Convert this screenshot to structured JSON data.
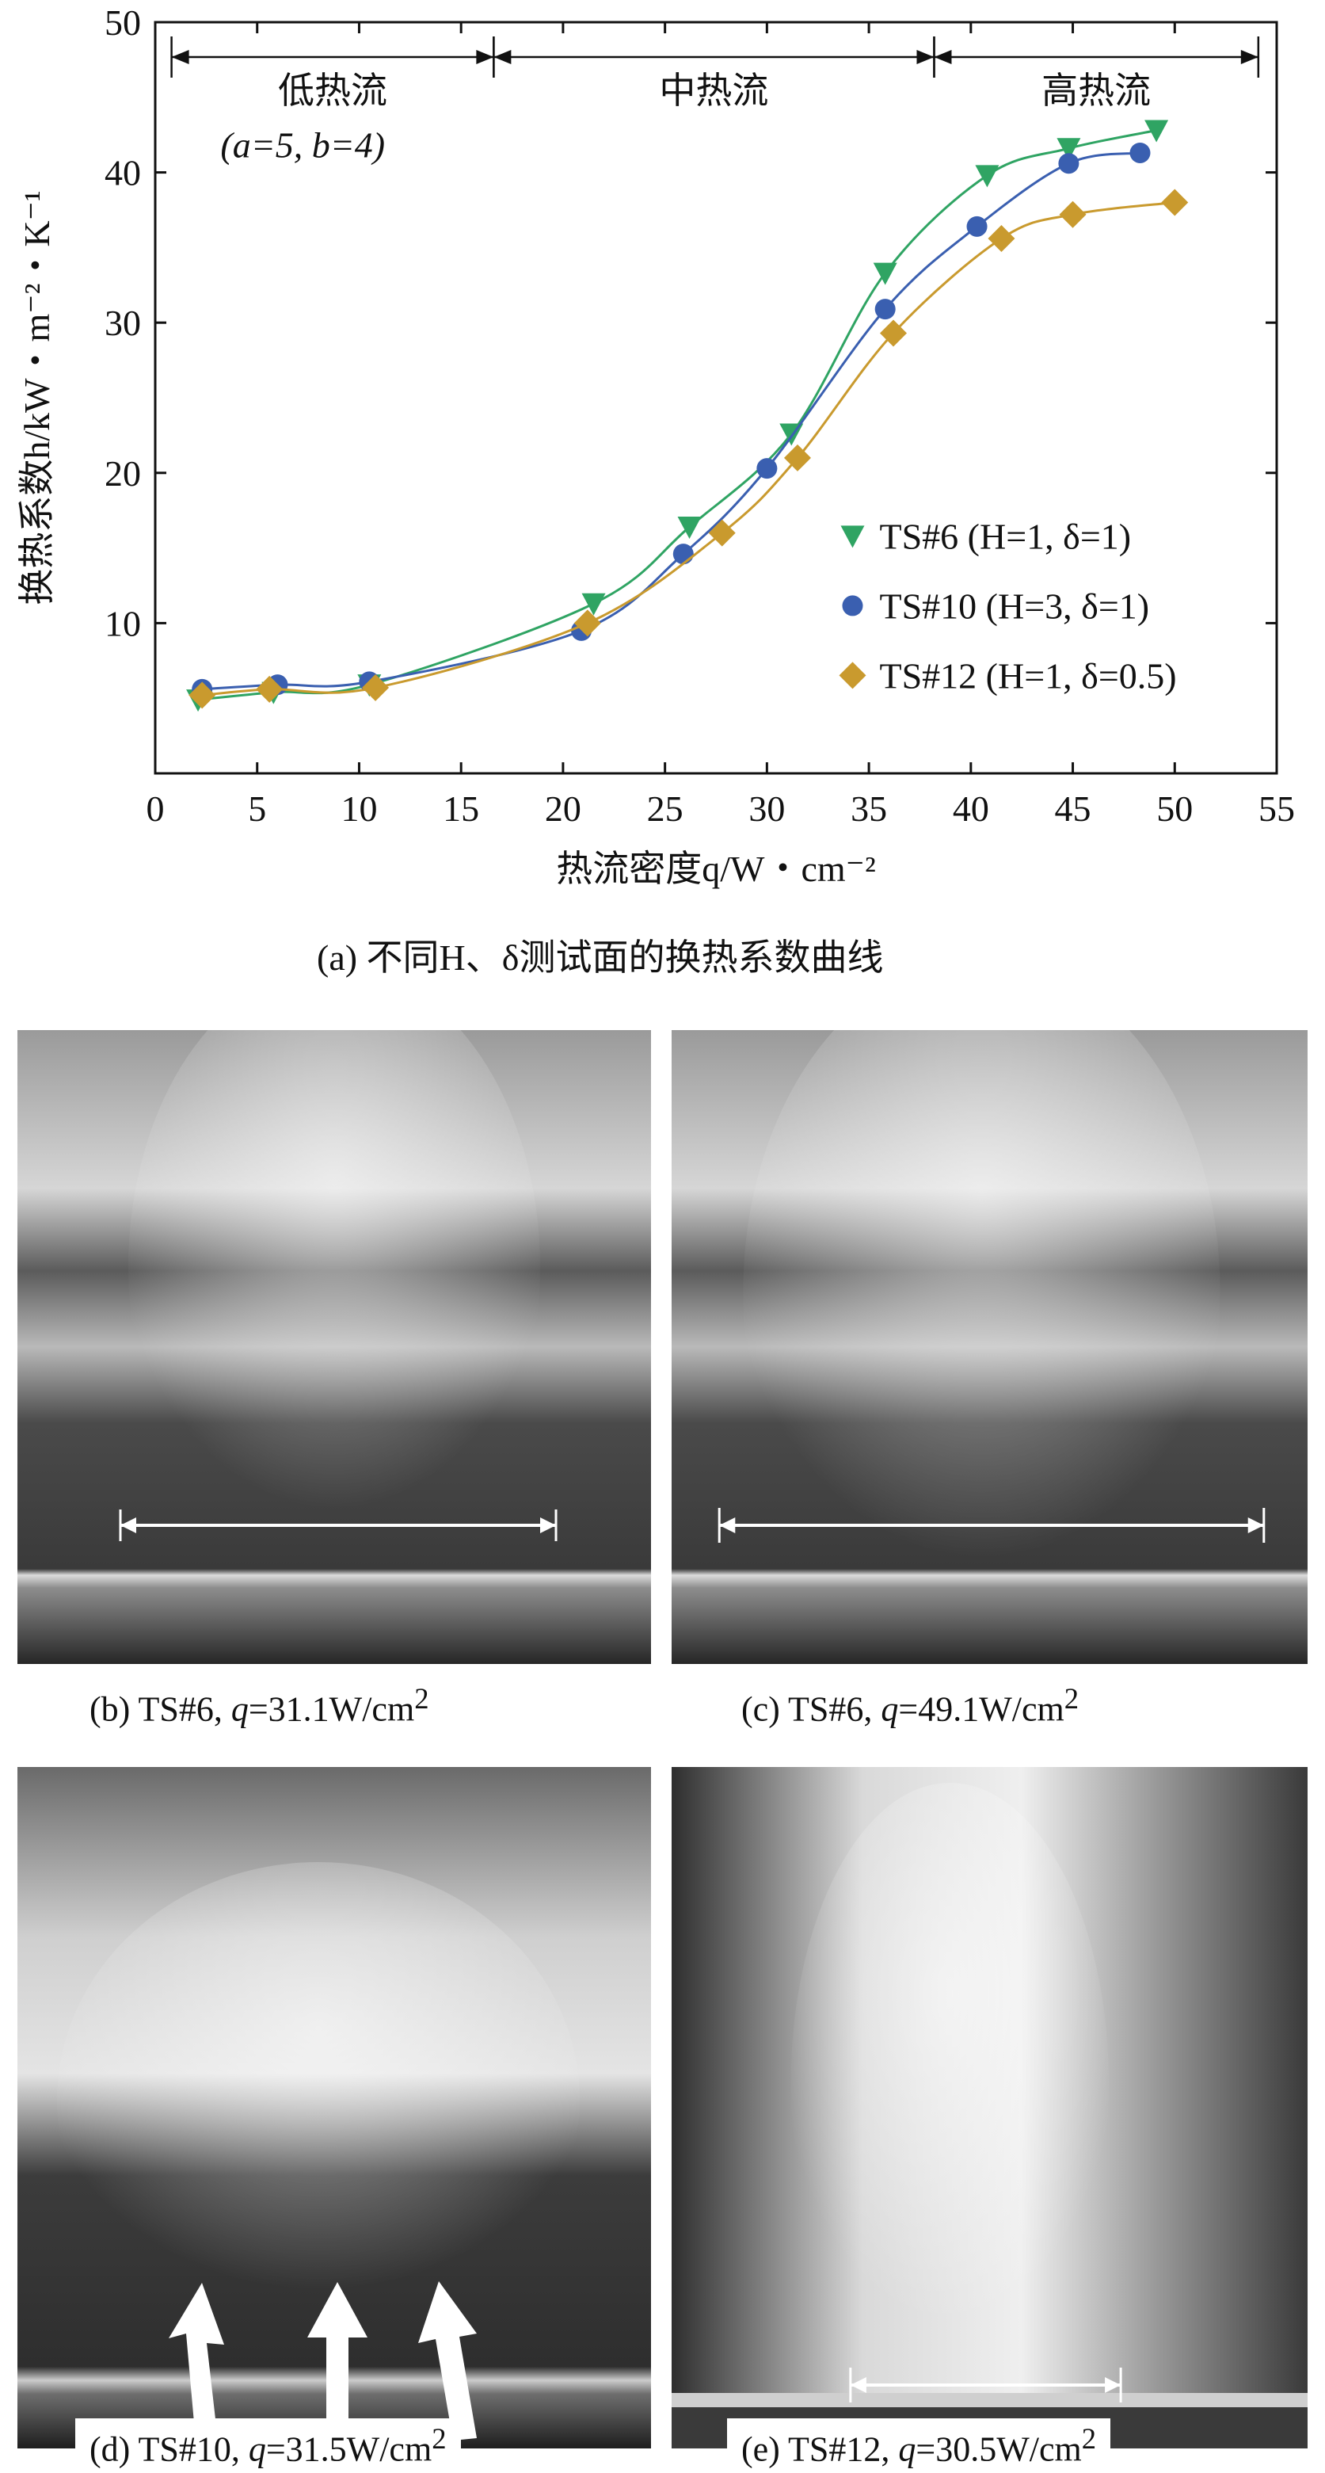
{
  "chart_data": {
    "type": "line",
    "title": "",
    "xlabel": "热流密度q/W・cm⁻²",
    "ylabel": "换热系数h/kW・m⁻²・K⁻¹",
    "xlim": [
      0,
      55
    ],
    "ylim": [
      0,
      50
    ],
    "xticks": [
      0,
      5,
      10,
      15,
      20,
      25,
      30,
      35,
      40,
      45,
      50,
      55
    ],
    "yticks": [
      10,
      20,
      30,
      40,
      50
    ],
    "grid": false,
    "legend_position": "lower-right",
    "annotation": "(a=5, b=4)",
    "regions": [
      {
        "label": "低热流",
        "x_start": 0.8,
        "x_end": 16.6
      },
      {
        "label": "中热流",
        "x_start": 16.6,
        "x_end": 38.2
      },
      {
        "label": "高热流",
        "x_start": 38.2,
        "x_end": 54.1
      }
    ],
    "series": [
      {
        "name": "TS#6 (H=1, δ=1)",
        "color": "#2fa463",
        "marker": "triangle-down",
        "x": [
          2.1,
          5.8,
          10.5,
          21.5,
          26.2,
          31.2,
          35.8,
          40.8,
          44.8,
          49.1
        ],
        "y": [
          4.9,
          5.4,
          5.9,
          11.3,
          16.4,
          22.6,
          33.3,
          39.8,
          41.6,
          42.8
        ]
      },
      {
        "name": "TS#10 (H=3, δ=1)",
        "color": "#3a5fb0",
        "marker": "circle",
        "x": [
          2.3,
          6.0,
          10.5,
          20.9,
          25.9,
          30.0,
          35.8,
          40.3,
          44.8,
          48.3
        ],
        "y": [
          5.6,
          5.9,
          6.1,
          9.5,
          14.6,
          20.3,
          30.9,
          36.4,
          40.6,
          41.3
        ]
      },
      {
        "name": "TS#12 (H=1, δ=0.5)",
        "color": "#c99a2e",
        "marker": "diamond",
        "x": [
          2.3,
          5.6,
          10.8,
          21.2,
          27.8,
          31.5,
          36.2,
          41.5,
          45.0,
          50.0
        ],
        "y": [
          5.2,
          5.6,
          5.7,
          10.0,
          16.0,
          21.0,
          29.3,
          35.6,
          37.2,
          38.0
        ]
      }
    ]
  },
  "caption_a": "(a) 不同H、δ测试面的换热系数曲线",
  "photos": [
    {
      "prefix": "(b) TS#6, ",
      "var": "q",
      "value": "=31.1W/cm",
      "sup": "2"
    },
    {
      "prefix": "(c) TS#6, ",
      "var": "q",
      "value": "=49.1W/cm",
      "sup": "2"
    },
    {
      "prefix": "(d) TS#10, ",
      "var": "q",
      "value": "=31.5W/cm",
      "sup": "2"
    },
    {
      "prefix": "(e) TS#12, ",
      "var": "q",
      "value": "=30.5W/cm",
      "sup": "2"
    }
  ],
  "colors": {
    "photo_bg": "#5a5a5a",
    "photo_dark": "#2a2a2a",
    "photo_light": "#d8d8d8",
    "arrow": "#ffffff"
  }
}
